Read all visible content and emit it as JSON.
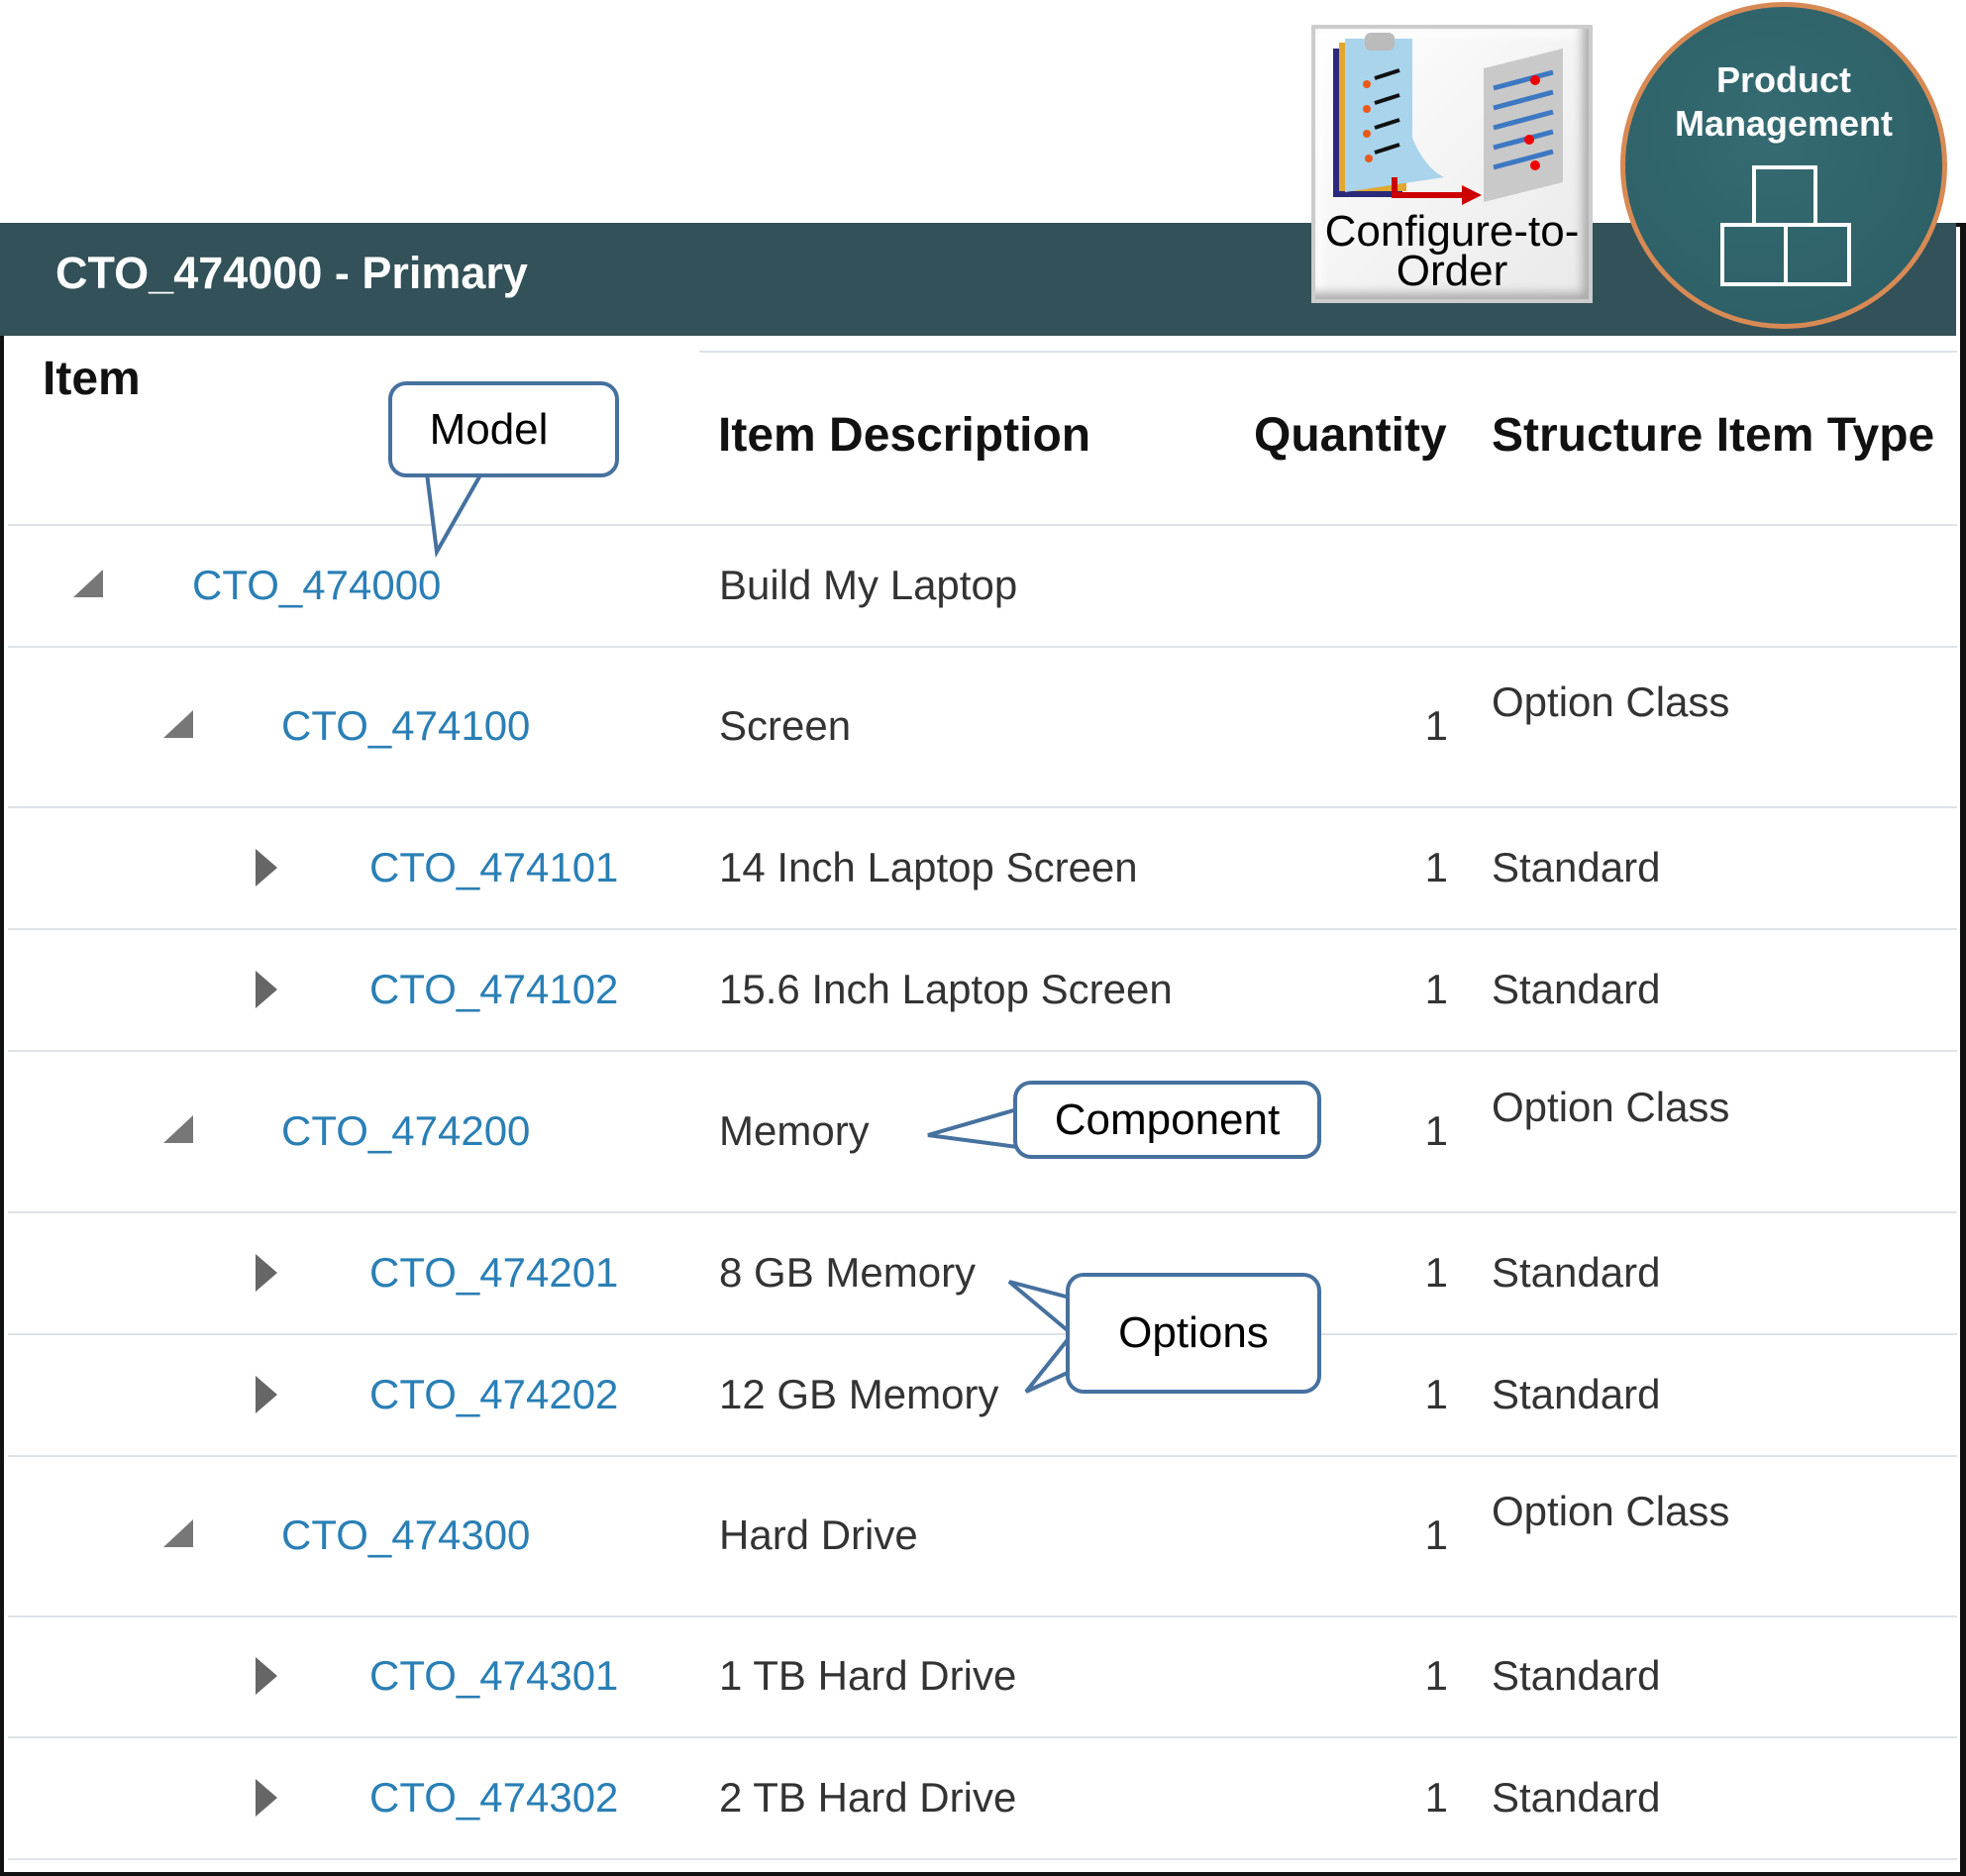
{
  "panel": {
    "title": "CTO_474000 - Primary"
  },
  "badges": {
    "cto": "Configure-to-Order",
    "pm": "Product Management"
  },
  "columns": {
    "item": "Item",
    "description": "Item Description",
    "quantity": "Quantity",
    "type": "Structure Item Type"
  },
  "rows": [
    {
      "item": "CTO_474000",
      "description": "Build My Laptop",
      "quantity": "",
      "type": "",
      "level": 0,
      "expanded": true
    },
    {
      "item": "CTO_474100",
      "description": "Screen",
      "quantity": "1",
      "type": "Option Class",
      "level": 1,
      "expanded": true
    },
    {
      "item": "CTO_474101",
      "description": "14 Inch Laptop Screen",
      "quantity": "1",
      "type": "Standard",
      "level": 2,
      "expanded": false
    },
    {
      "item": "CTO_474102",
      "description": "15.6 Inch Laptop Screen",
      "quantity": "1",
      "type": "Standard",
      "level": 2,
      "expanded": false
    },
    {
      "item": "CTO_474200",
      "description": "Memory",
      "quantity": "1",
      "type": "Option Class",
      "level": 1,
      "expanded": true
    },
    {
      "item": "CTO_474201",
      "description": "8 GB Memory",
      "quantity": "1",
      "type": "Standard",
      "level": 2,
      "expanded": false
    },
    {
      "item": "CTO_474202",
      "description": "12 GB Memory",
      "quantity": "1",
      "type": "Standard",
      "level": 2,
      "expanded": false
    },
    {
      "item": "CTO_474300",
      "description": "Hard Drive",
      "quantity": "1",
      "type": "Option Class",
      "level": 1,
      "expanded": true
    },
    {
      "item": "CTO_474301",
      "description": "1 TB Hard Drive",
      "quantity": "1",
      "type": "Standard",
      "level": 2,
      "expanded": false
    },
    {
      "item": "CTO_474302",
      "description": "2 TB Hard Drive",
      "quantity": "1",
      "type": "Standard",
      "level": 2,
      "expanded": false
    }
  ],
  "callouts": {
    "model": "Model",
    "component": "Component",
    "options": "Options"
  },
  "colors": {
    "header": "#325158",
    "link": "#2a7fb5",
    "callout_border": "#46719f",
    "badge_ring": "#d88a55"
  }
}
